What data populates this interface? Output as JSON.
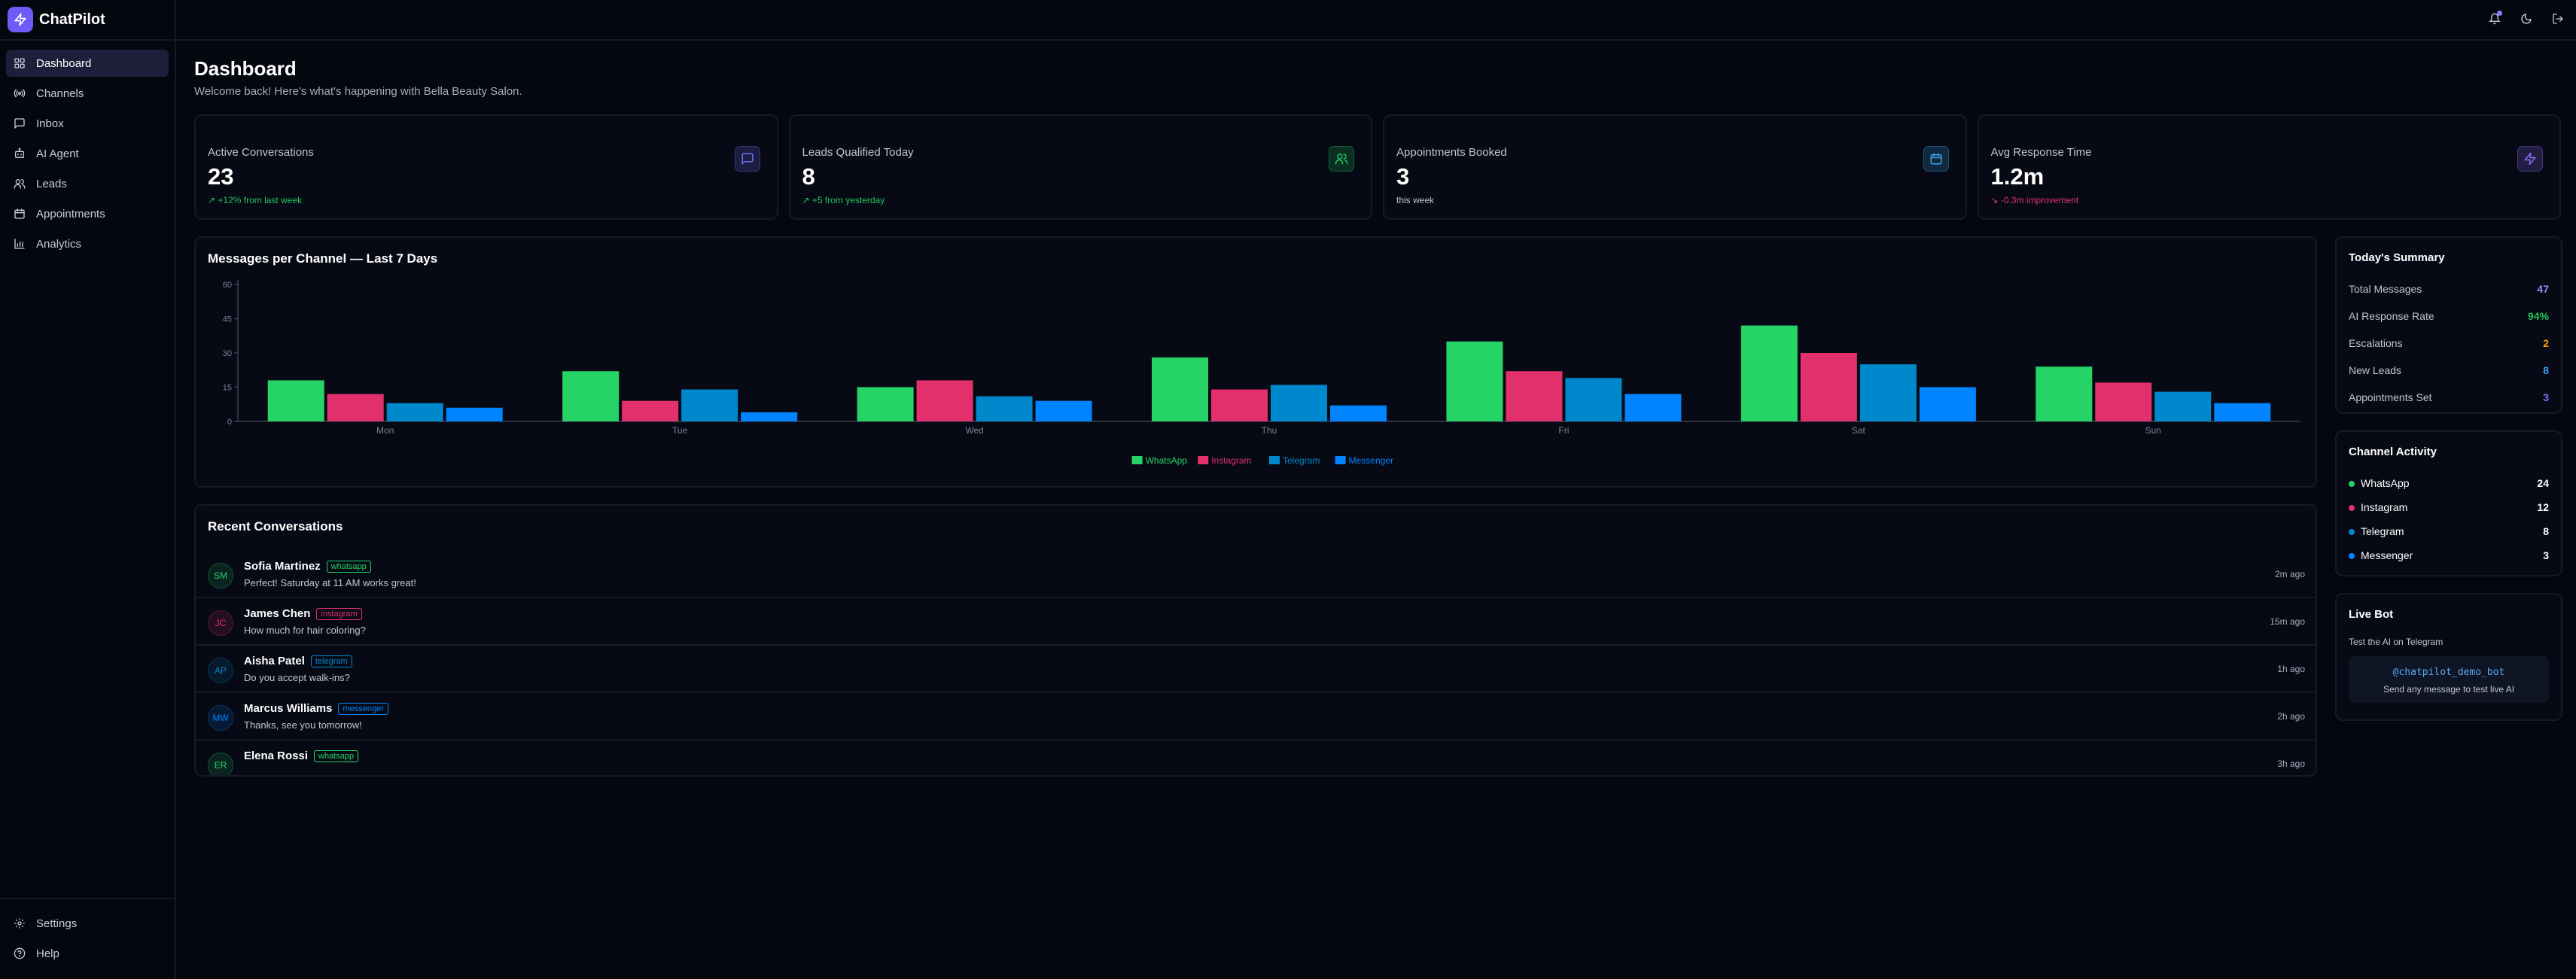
{
  "brand": {
    "name": "ChatPilot"
  },
  "sidebar": {
    "items": [
      {
        "label": "Dashboard",
        "icon": "grid-icon",
        "active": true
      },
      {
        "label": "Channels",
        "icon": "radio-icon"
      },
      {
        "label": "Inbox",
        "icon": "chat-icon"
      },
      {
        "label": "AI Agent",
        "icon": "bot-icon"
      },
      {
        "label": "Leads",
        "icon": "users-icon"
      },
      {
        "label": "Appointments",
        "icon": "calendar-icon"
      },
      {
        "label": "Analytics",
        "icon": "bar-chart-icon"
      }
    ],
    "bottom": [
      {
        "label": "Settings",
        "icon": "gear-icon"
      },
      {
        "label": "Help",
        "icon": "help-icon"
      }
    ]
  },
  "header": {
    "title": "Dashboard",
    "subtitle": "Welcome back! Here's what's happening with Bella Beauty Salon."
  },
  "stats": [
    {
      "label": "Active Conversations",
      "value": "23",
      "note": "↗ +12% from last week",
      "note_color": "#22c55e",
      "icon": "message-square-icon",
      "accent": "#6d6cf6"
    },
    {
      "label": "Leads Qualified Today",
      "value": "8",
      "note": "↗ +5 from yesterday",
      "note_color": "#22c55e",
      "icon": "users-icon",
      "accent": "#22c55e"
    },
    {
      "label": "Appointments Booked",
      "value": "3",
      "note": "this week",
      "note_color": "#c1c5d3",
      "icon": "calendar-icon",
      "accent": "#3aa0e6"
    },
    {
      "label": "Avg Response Time",
      "value": "1.2m",
      "note": "↘ -0.3m improvement",
      "note_color": "#e0306a",
      "icon": "zap-icon",
      "accent": "#8b6cf6"
    }
  ],
  "chart_data": {
    "type": "bar",
    "title": "Messages per Channel — Last 7 Days",
    "categories": [
      "Mon",
      "Tue",
      "Wed",
      "Thu",
      "Fri",
      "Sat",
      "Sun"
    ],
    "ylim": [
      0,
      60
    ],
    "yticks": [
      0,
      15,
      30,
      45,
      60
    ],
    "legend_position": "bottom",
    "series": [
      {
        "name": "WhatsApp",
        "color": "#25d366",
        "values": [
          18,
          22,
          15,
          28,
          35,
          42,
          24
        ]
      },
      {
        "name": "Instagram",
        "color": "#e1306c",
        "values": [
          12,
          9,
          18,
          14,
          22,
          30,
          17
        ]
      },
      {
        "name": "Telegram",
        "color": "#0088cc",
        "values": [
          8,
          14,
          11,
          16,
          19,
          25,
          13
        ]
      },
      {
        "name": "Messenger",
        "color": "#0084ff",
        "values": [
          6,
          4,
          9,
          7,
          12,
          15,
          8
        ]
      }
    ]
  },
  "recent": {
    "title": "Recent Conversations",
    "items": [
      {
        "initials": "SM",
        "name": "Sofia Martinez",
        "channel": "whatsapp",
        "color": "#25d366",
        "message": "Perfect! Saturday at 11 AM works great!",
        "time": "2m ago"
      },
      {
        "initials": "JC",
        "name": "James Chen",
        "channel": "instagram",
        "color": "#e1306c",
        "message": "How much for hair coloring?",
        "time": "15m ago"
      },
      {
        "initials": "AP",
        "name": "Aisha Patel",
        "channel": "telegram",
        "color": "#0088cc",
        "message": "Do you accept walk-ins?",
        "time": "1h ago"
      },
      {
        "initials": "MW",
        "name": "Marcus Williams",
        "channel": "messenger",
        "color": "#0084ff",
        "message": "Thanks, see you tomorrow!",
        "time": "2h ago"
      },
      {
        "initials": "ER",
        "name": "Elena Rossi",
        "channel": "whatsapp",
        "color": "#25d366",
        "message": "",
        "time": "3h ago"
      }
    ]
  },
  "summary": {
    "title": "Today's Summary",
    "rows": [
      {
        "label": "Total Messages",
        "value": "47",
        "color": "#8b8cff"
      },
      {
        "label": "AI Response Rate",
        "value": "94%",
        "color": "#22c55e"
      },
      {
        "label": "Escalations",
        "value": "2",
        "color": "#f59e0b"
      },
      {
        "label": "New Leads",
        "value": "8",
        "color": "#3aa0e6"
      },
      {
        "label": "Appointments Set",
        "value": "3",
        "color": "#8b6cf6"
      }
    ]
  },
  "channel_activity": {
    "title": "Channel Activity",
    "rows": [
      {
        "label": "WhatsApp",
        "value": "24",
        "color": "#25d366"
      },
      {
        "label": "Instagram",
        "value": "12",
        "color": "#e1306c"
      },
      {
        "label": "Telegram",
        "value": "8",
        "color": "#0088cc"
      },
      {
        "label": "Messenger",
        "value": "3",
        "color": "#0084ff"
      }
    ]
  },
  "live_bot": {
    "title": "Live Bot",
    "description": "Test the AI on Telegram",
    "handle": "@chatpilot_demo_bot",
    "hint": "Send any message to test live AI"
  }
}
